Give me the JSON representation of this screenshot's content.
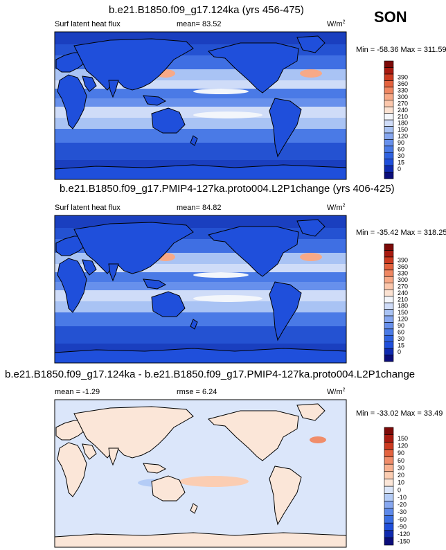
{
  "season": "SON",
  "colorbar_abs": {
    "colors": [
      "#0b0d7a",
      "#0f2ab0",
      "#1f4fdb",
      "#2f62e0",
      "#4a7ae6",
      "#6790ec",
      "#86a7f0",
      "#a9c3f4",
      "#cfdcf8",
      "#f3f6fb",
      "#fbe2d2",
      "#fbc7ac",
      "#f7a987",
      "#ef8762",
      "#e3623e",
      "#cc3a20",
      "#a81a10",
      "#7c0a08"
    ],
    "labels": [
      "0",
      "15",
      "30",
      "60",
      "90",
      "120",
      "150",
      "180",
      "210",
      "240",
      "270",
      "300",
      "330",
      "360",
      "390"
    ]
  },
  "colorbar_diff": {
    "colors": [
      "#0b0d7a",
      "#0f2ab0",
      "#1f4fdb",
      "#3a6ee3",
      "#5d89ea",
      "#86a7f0",
      "#b4ccf6",
      "#dbe6fa",
      "#fbe6d8",
      "#fbcdb2",
      "#f8b08f",
      "#f08d6a",
      "#e3633f",
      "#cc3a20",
      "#a81a10",
      "#7c0a08"
    ],
    "labels": [
      "-150",
      "-120",
      "-90",
      "-60",
      "-30",
      "-20",
      "-10",
      "0",
      "10",
      "20",
      "30",
      "60",
      "90",
      "120",
      "150"
    ]
  },
  "panels": [
    {
      "title": "b.e21.B1850.f09_g17.124ka (yrs 456-475)",
      "left_label": "Surf latent heat flux",
      "mean_label": "mean=  83.52",
      "units": "W/m",
      "units_exp": "2",
      "minmax": "Min = -58.36 Max = 311.59",
      "map_style": "abs"
    },
    {
      "title": "b.e21.B1850.f09_g17.PMIP4-127ka.proto004.L2P1change (yrs 406-425)",
      "left_label": "Surf latent heat flux",
      "mean_label": "mean=  84.82",
      "units": "W/m",
      "units_exp": "2",
      "minmax": "Min = -35.42 Max = 318.25",
      "map_style": "abs"
    },
    {
      "title": "b.e21.B1850.f09_g17.124ka - b.e21.B1850.f09_g17.PMIP4-127ka.proto004.L2P1change",
      "left_label": "mean =  -1.29",
      "mean_label": "rmse =   6.24",
      "units": "W/m",
      "units_exp": "2",
      "minmax": "Min = -33.02 Max =  33.49",
      "map_style": "diff"
    }
  ],
  "chart_data": [
    {
      "type": "heatmap",
      "title": "b.e21.B1850.f09_g17.124ka (yrs 456-475)",
      "subtitle": "Surf latent heat flux",
      "mean": 83.52,
      "min": -58.36,
      "max": 311.59,
      "units": "W/m2",
      "season": "SON",
      "levels": [
        0,
        15,
        30,
        60,
        90,
        120,
        150,
        180,
        210,
        240,
        270,
        300,
        330,
        360,
        390
      ]
    },
    {
      "type": "heatmap",
      "title": "b.e21.B1850.f09_g17.PMIP4-127ka.proto004.L2P1change (yrs 406-425)",
      "subtitle": "Surf latent heat flux",
      "mean": 84.82,
      "min": -35.42,
      "max": 318.25,
      "units": "W/m2",
      "season": "SON",
      "levels": [
        0,
        15,
        30,
        60,
        90,
        120,
        150,
        180,
        210,
        240,
        270,
        300,
        330,
        360,
        390
      ]
    },
    {
      "type": "heatmap",
      "title": "b.e21.B1850.f09_g17.124ka - b.e21.B1850.f09_g17.PMIP4-127ka.proto004.L2P1change",
      "mean": -1.29,
      "rmse": 6.24,
      "min": -33.02,
      "max": 33.49,
      "units": "W/m2",
      "season": "SON",
      "levels": [
        -150,
        -120,
        -90,
        -60,
        -30,
        -20,
        -10,
        0,
        10,
        20,
        30,
        60,
        90,
        120,
        150
      ]
    }
  ]
}
